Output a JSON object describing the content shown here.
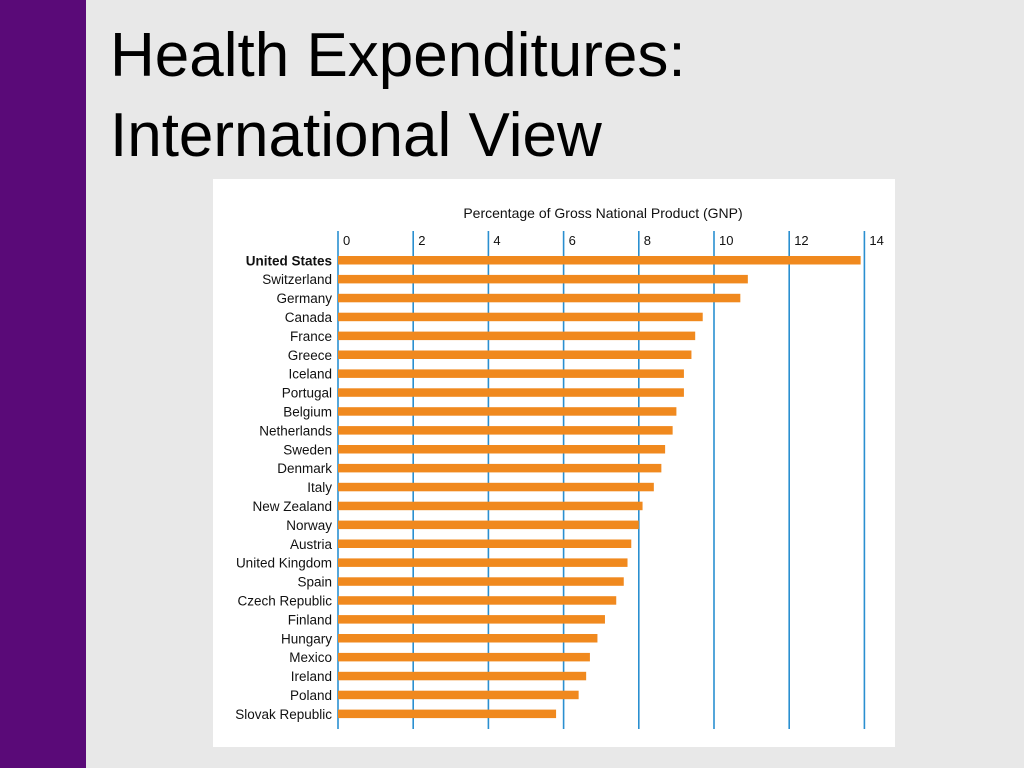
{
  "slide": {
    "title_line1": "Health Expenditures:",
    "title_line2": "International View",
    "colors": {
      "background": "#e8e8e8",
      "side_bar": "#5a0a78"
    }
  },
  "chart_data": {
    "type": "bar",
    "orientation": "horizontal",
    "title": "Percentage of Gross National Product (GNP)",
    "xlim": [
      0,
      14
    ],
    "xticks": [
      0,
      2,
      4,
      6,
      8,
      10,
      12,
      14
    ],
    "grid": true,
    "bar_color": "#f0891e",
    "grid_color": "#2a8fd0",
    "highlight_category": "United States",
    "categories": [
      "United States",
      "Switzerland",
      "Germany",
      "Canada",
      "France",
      "Greece",
      "Iceland",
      "Portugal",
      "Belgium",
      "Netherlands",
      "Sweden",
      "Denmark",
      "Italy",
      "New Zealand",
      "Norway",
      "Austria",
      "United Kingdom",
      "Spain",
      "Czech Republic",
      "Finland",
      "Hungary",
      "Mexico",
      "Ireland",
      "Poland",
      "Slovak Republic"
    ],
    "values": [
      13.9,
      10.9,
      10.7,
      9.7,
      9.5,
      9.4,
      9.2,
      9.2,
      9.0,
      8.9,
      8.7,
      8.6,
      8.4,
      8.1,
      8.0,
      7.8,
      7.7,
      7.6,
      7.4,
      7.1,
      6.9,
      6.7,
      6.6,
      6.4,
      5.8
    ]
  }
}
